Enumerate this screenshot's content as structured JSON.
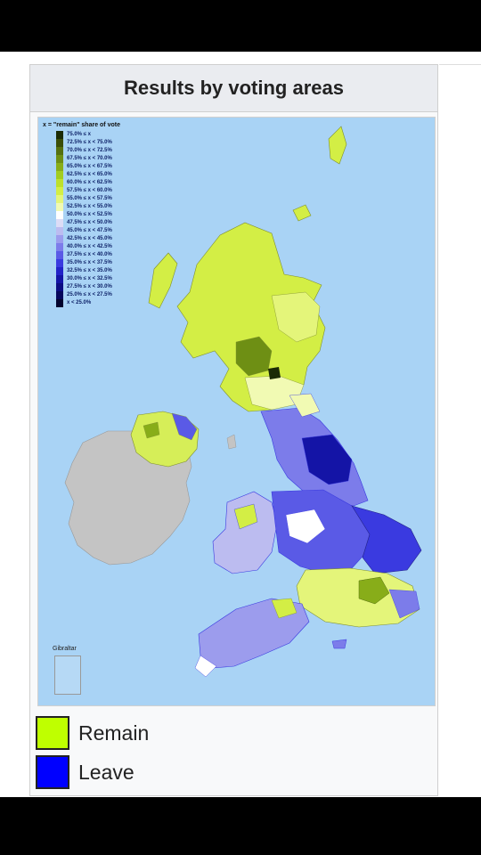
{
  "panel": {
    "title": "Results by voting areas"
  },
  "map": {
    "scale_title": "x = \"remain\" share of vote",
    "scale": [
      {
        "label": "75.0% ≤ x",
        "color": "#1b2b05"
      },
      {
        "label": "72.5% ≤ x < 75.0%",
        "color": "#3a4e09"
      },
      {
        "label": "70.0% ≤ x < 72.5%",
        "color": "#557010"
      },
      {
        "label": "67.5% ≤ x < 70.0%",
        "color": "#6e8f14"
      },
      {
        "label": "65.0% ≤ x < 67.5%",
        "color": "#88ad19"
      },
      {
        "label": "62.5% ≤ x < 65.0%",
        "color": "#a2cc20"
      },
      {
        "label": "60.0% ≤ x < 62.5%",
        "color": "#bde02c"
      },
      {
        "label": "57.5% ≤ x < 60.0%",
        "color": "#d3ee45"
      },
      {
        "label": "55.0% ≤ x < 57.5%",
        "color": "#e4f57a"
      },
      {
        "label": "52.5% ≤ x < 55.0%",
        "color": "#f1fab3"
      },
      {
        "label": "50.0% ≤ x < 52.5%",
        "color": "#ffffff"
      },
      {
        "label": "47.5% ≤ x < 50.0%",
        "color": "#dcdcf6"
      },
      {
        "label": "45.0% ≤ x < 47.5%",
        "color": "#bcbcf0"
      },
      {
        "label": "42.5% ≤ x < 45.0%",
        "color": "#9c9ced"
      },
      {
        "label": "40.0% ≤ x < 42.5%",
        "color": "#7c7cea"
      },
      {
        "label": "37.5% ≤ x < 40.0%",
        "color": "#5a5ae6"
      },
      {
        "label": "35.0% ≤ x < 37.5%",
        "color": "#3a3ae0"
      },
      {
        "label": "32.5% ≤ x < 35.0%",
        "color": "#2222c8"
      },
      {
        "label": "30.0% ≤ x < 32.5%",
        "color": "#1414a6"
      },
      {
        "label": "27.5% ≤ x < 30.0%",
        "color": "#0c0c82"
      },
      {
        "label": "25.0% ≤ x < 27.5%",
        "color": "#06065c"
      },
      {
        "label": "x < 25.0%",
        "color": "#03032e"
      }
    ],
    "gibraltar_label": "Gibraltar",
    "colors": {
      "sea": "#a9d3f5",
      "ireland": "#c4c4c4",
      "remain": "#c8f000",
      "leave": "#0000ff"
    }
  },
  "legend": [
    {
      "label": "Remain",
      "color": "#bfff00"
    },
    {
      "label": "Leave",
      "color": "#0000ff"
    }
  ]
}
